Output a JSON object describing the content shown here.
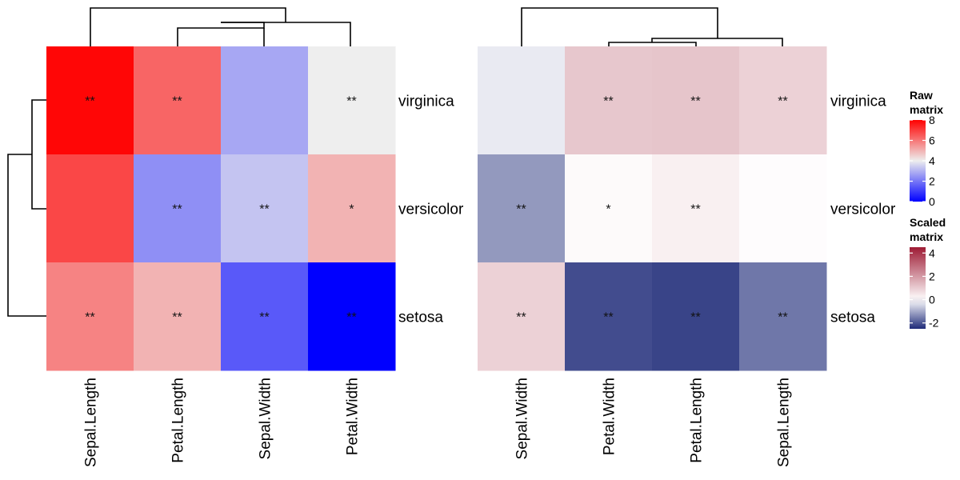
{
  "chart_data": [
    {
      "type": "heatmap",
      "name": "Raw matrix",
      "rows": [
        "virginica",
        "versicolor",
        "setosa"
      ],
      "columns": [
        "Sepal.Length",
        "Petal.Length",
        "Sepal.Width",
        "Petal.Width"
      ],
      "values": [
        [
          7.9,
          6.3,
          2.8,
          4.0
        ],
        [
          6.8,
          2.4,
          3.3,
          5.0
        ],
        [
          5.8,
          5.0,
          1.5,
          0.0
        ]
      ],
      "annotations": [
        [
          "**",
          "**",
          "",
          "**"
        ],
        [
          "",
          "**",
          "**",
          "*"
        ],
        [
          "**",
          "**",
          "**",
          "**"
        ]
      ],
      "row_dendrogram": true,
      "column_dendrogram": true
    },
    {
      "type": "heatmap",
      "name": "Scaled matrix",
      "rows": [
        "virginica",
        "versicolor",
        "setosa"
      ],
      "columns": [
        "Sepal.Width",
        "Petal.Width",
        "Petal.Length",
        "Sepal.Length"
      ],
      "values": [
        [
          -0.25,
          1.1,
          1.15,
          0.9
        ],
        [
          -1.2,
          0.1,
          0.3,
          0.05
        ],
        [
          0.9,
          -2.1,
          -2.2,
          -1.6
        ]
      ],
      "annotations": [
        [
          "",
          "**",
          "**",
          "**"
        ],
        [
          "**",
          "*",
          "**",
          ""
        ],
        [
          "**",
          "**",
          "**",
          "**"
        ]
      ],
      "column_dendrogram": true
    }
  ],
  "legends": [
    {
      "title_line1": "Raw",
      "title_line2": "matrix",
      "ticks": [
        "8",
        "6",
        "4",
        "2",
        "0"
      ],
      "range": [
        0,
        8
      ],
      "colors": {
        "low": "#0000FF",
        "mid": "#EEEEEE",
        "high": "#FF0000",
        "mid_value": 4
      }
    },
    {
      "title_line1": "Scaled",
      "title_line2": "matrix",
      "ticks": [
        "4",
        "2",
        "0",
        "-2"
      ],
      "range": [
        -2.5,
        4.5
      ],
      "colors": {
        "low": "#1E2A78",
        "mid": "#FFFFFF",
        "high": "#9E1B34",
        "mid_value": 0
      }
    }
  ]
}
